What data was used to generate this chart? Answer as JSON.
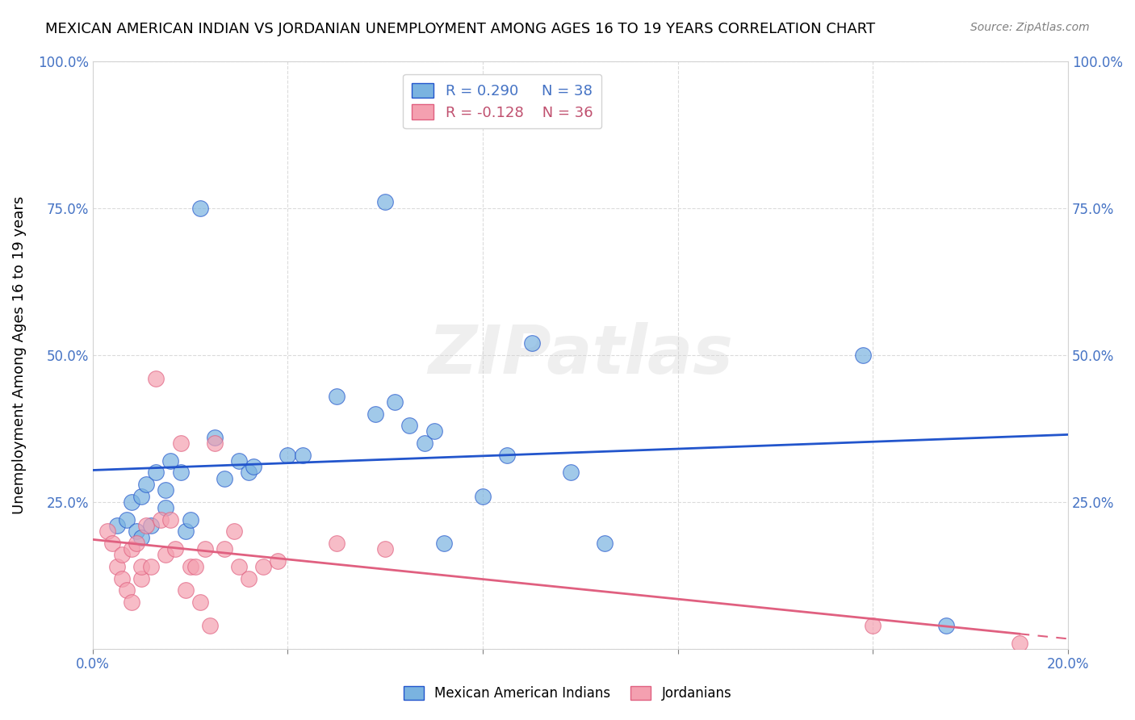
{
  "title": "MEXICAN AMERICAN INDIAN VS JORDANIAN UNEMPLOYMENT AMONG AGES 16 TO 19 YEARS CORRELATION CHART",
  "source": "Source: ZipAtlas.com",
  "xlabel": "",
  "ylabel": "Unemployment Among Ages 16 to 19 years",
  "xlim": [
    0.0,
    0.2
  ],
  "ylim": [
    0.0,
    1.0
  ],
  "xticks": [
    0.0,
    0.04,
    0.08,
    0.12,
    0.16,
    0.2
  ],
  "yticks": [
    0.0,
    0.25,
    0.5,
    0.75,
    1.0
  ],
  "xtick_labels": [
    "0.0%",
    "",
    "",
    "",
    "",
    "20.0%"
  ],
  "ytick_labels": [
    "",
    "25.0%",
    "50.0%",
    "75.0%",
    "100.0%"
  ],
  "legend_blue_r": "R = 0.290",
  "legend_blue_n": "N = 38",
  "legend_pink_r": "R = -0.128",
  "legend_pink_n": "N = 36",
  "blue_color": "#7ab3e0",
  "pink_color": "#f4a0b0",
  "line_blue": "#2255cc",
  "line_pink": "#e06080",
  "watermark": "ZIPatlas",
  "blue_x": [
    0.005,
    0.007,
    0.008,
    0.009,
    0.01,
    0.01,
    0.011,
    0.012,
    0.013,
    0.015,
    0.015,
    0.016,
    0.018,
    0.019,
    0.02,
    0.022,
    0.025,
    0.027,
    0.03,
    0.032,
    0.033,
    0.04,
    0.043,
    0.05,
    0.058,
    0.06,
    0.062,
    0.065,
    0.068,
    0.07,
    0.072,
    0.08,
    0.085,
    0.09,
    0.098,
    0.105,
    0.158,
    0.175
  ],
  "blue_y": [
    0.21,
    0.22,
    0.25,
    0.2,
    0.19,
    0.26,
    0.28,
    0.21,
    0.3,
    0.24,
    0.27,
    0.32,
    0.3,
    0.2,
    0.22,
    0.75,
    0.36,
    0.29,
    0.32,
    0.3,
    0.31,
    0.33,
    0.33,
    0.43,
    0.4,
    0.76,
    0.42,
    0.38,
    0.35,
    0.37,
    0.18,
    0.26,
    0.33,
    0.52,
    0.3,
    0.18,
    0.5,
    0.04
  ],
  "pink_x": [
    0.003,
    0.004,
    0.005,
    0.006,
    0.006,
    0.007,
    0.008,
    0.008,
    0.009,
    0.01,
    0.01,
    0.011,
    0.012,
    0.013,
    0.014,
    0.015,
    0.016,
    0.017,
    0.018,
    0.019,
    0.02,
    0.021,
    0.022,
    0.023,
    0.024,
    0.025,
    0.027,
    0.029,
    0.03,
    0.032,
    0.035,
    0.038,
    0.05,
    0.06,
    0.16,
    0.19
  ],
  "pink_y": [
    0.2,
    0.18,
    0.14,
    0.16,
    0.12,
    0.1,
    0.08,
    0.17,
    0.18,
    0.12,
    0.14,
    0.21,
    0.14,
    0.46,
    0.22,
    0.16,
    0.22,
    0.17,
    0.35,
    0.1,
    0.14,
    0.14,
    0.08,
    0.17,
    0.04,
    0.35,
    0.17,
    0.2,
    0.14,
    0.12,
    0.14,
    0.15,
    0.18,
    0.17,
    0.04,
    0.01
  ]
}
